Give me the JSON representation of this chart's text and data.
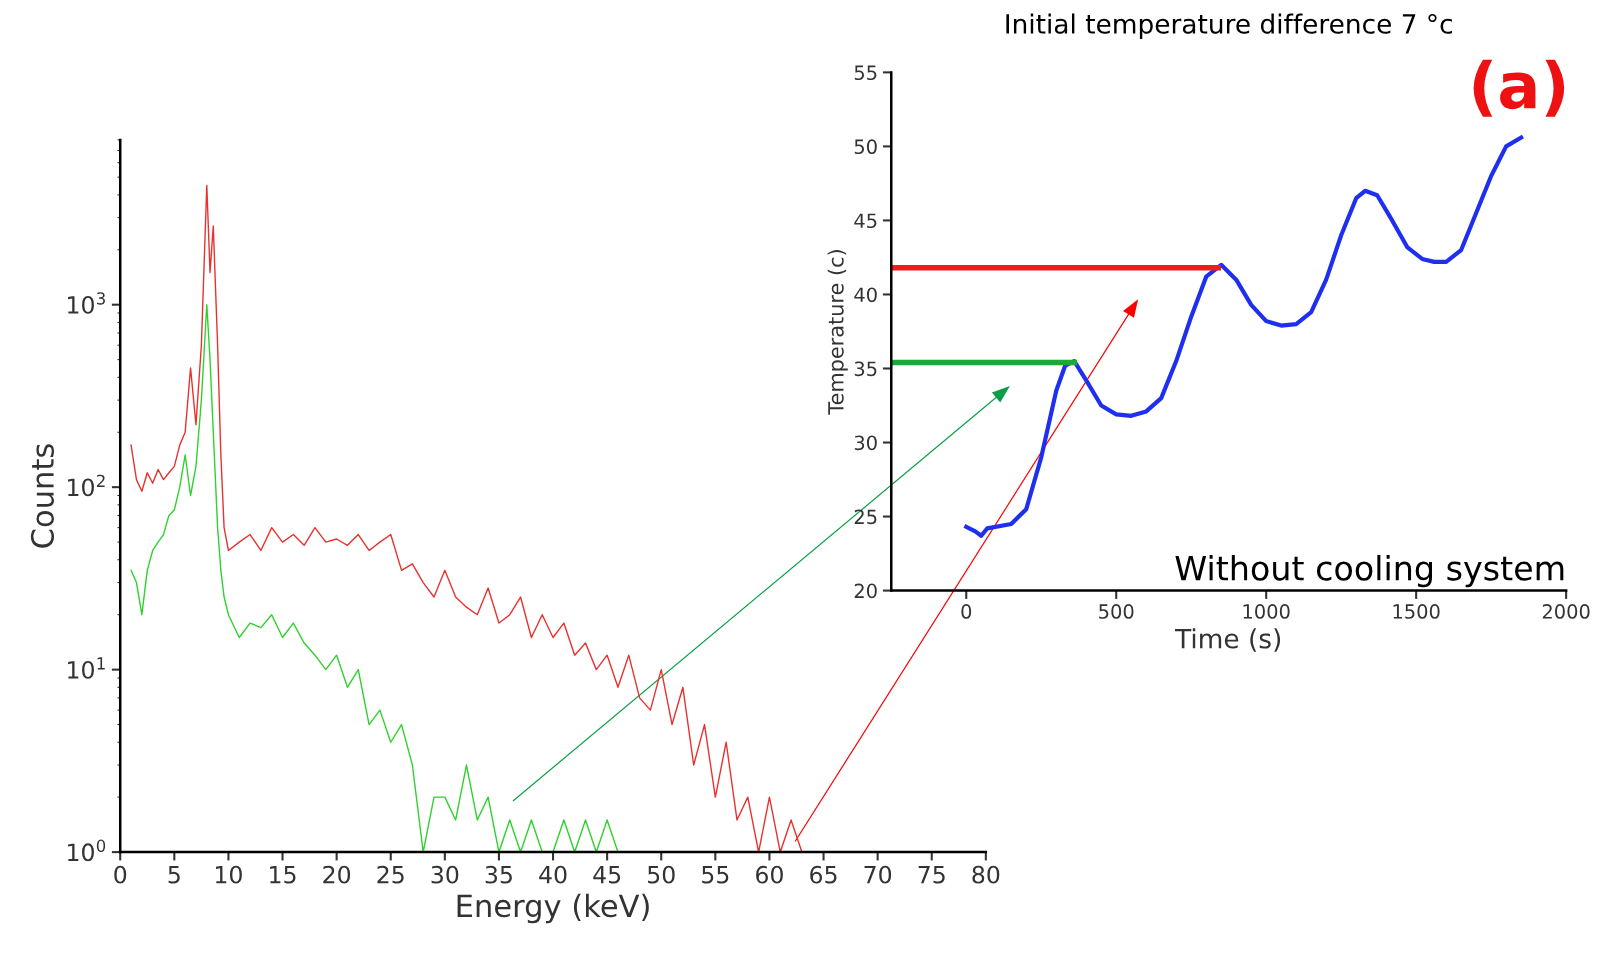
{
  "chart_data": [
    {
      "type": "line",
      "xlabel": "Energy (keV)",
      "ylabel": "Counts",
      "log": "y",
      "xlim": [
        0,
        80
      ],
      "xticks": [
        0,
        5,
        10,
        15,
        20,
        25,
        30,
        35,
        40,
        45,
        50,
        55,
        60,
        65,
        70,
        75,
        80
      ],
      "ylim": [
        1,
        8000
      ],
      "yticks": [
        {
          "value": 1,
          "label": "10$^{0}$"
        },
        {
          "value": 10,
          "label": "10$^{1}$"
        },
        {
          "value": 100,
          "label": "10$^{2}$"
        },
        {
          "value": 1000,
          "label": "10$^{3}$"
        }
      ],
      "x": [
        1,
        1.5,
        2,
        2.5,
        3,
        3.5,
        4,
        4.5,
        5,
        5.5,
        6,
        6.5,
        7,
        7.5,
        8,
        8.3,
        8.6,
        9,
        9.3,
        9.6,
        10,
        11,
        12,
        13,
        14,
        15,
        16,
        17,
        18,
        19,
        20,
        21,
        22,
        23,
        24,
        25,
        26,
        27,
        28,
        29,
        30,
        31,
        32,
        33,
        34,
        35,
        36,
        37,
        38,
        39,
        40,
        41,
        42,
        43,
        44,
        45,
        46,
        47,
        48,
        49,
        50,
        51,
        52,
        53,
        54,
        55,
        56,
        57,
        58,
        59,
        60,
        61,
        62,
        63
      ],
      "grid": false,
      "marker": "none",
      "line_style": "solid",
      "series": [
        {
          "color": "#e8312f",
          "values": [
            170,
            110,
            95,
            120,
            105,
            125,
            110,
            120,
            130,
            170,
            200,
            450,
            220,
            600,
            4500,
            1500,
            2700,
            600,
            150,
            60,
            45,
            50,
            55,
            45,
            60,
            50,
            55,
            48,
            60,
            50,
            52,
            48,
            55,
            45,
            50,
            55,
            35,
            38,
            30,
            25,
            35,
            25,
            22,
            20,
            28,
            18,
            20,
            25,
            15,
            20,
            15,
            18,
            12,
            14,
            10,
            12,
            8,
            12,
            7,
            6,
            10,
            5,
            8,
            3,
            5,
            2,
            4,
            1.5,
            2,
            1,
            2,
            1,
            1.5,
            1
          ]
        },
        {
          "color": "#2ed12e",
          "values": [
            35,
            30,
            20,
            35,
            45,
            50,
            55,
            70,
            75,
            100,
            150,
            90,
            130,
            300,
            1000,
            500,
            200,
            60,
            35,
            25,
            20,
            15,
            18,
            17,
            20,
            15,
            18,
            14,
            12,
            10,
            12,
            8,
            10,
            5,
            6,
            4,
            5,
            3,
            1,
            2,
            2,
            1.5,
            3,
            1.5,
            2,
            1,
            1.5,
            1,
            1.5,
            1,
            1,
            1.5,
            1,
            1.5,
            1,
            1.5,
            1,
            null,
            null,
            null,
            null,
            null,
            null,
            null,
            null,
            null,
            null,
            null,
            null,
            null,
            null,
            null,
            null,
            null
          ]
        }
      ]
    },
    {
      "type": "line",
      "title": "Initial temperature difference 7 °c",
      "xlabel": "Time (s)",
      "ylabel": "Temperature (c)",
      "xlim": [
        -250,
        2000
      ],
      "xticks": [
        0,
        500,
        1000,
        1500,
        2000
      ],
      "ylim": [
        20,
        55
      ],
      "yticks": [
        20,
        25,
        30,
        35,
        40,
        45,
        50,
        55
      ],
      "grid": false,
      "marker": "none",
      "line_style": "solid",
      "annotations": [
        "(a)",
        "Without cooling system"
      ],
      "series": [
        {
          "color": "#1f2ff0",
          "x": [
            0,
            30,
            50,
            70,
            150,
            200,
            250,
            300,
            330,
            360,
            400,
            450,
            500,
            550,
            600,
            650,
            700,
            750,
            800,
            850,
            900,
            950,
            1000,
            1050,
            1100,
            1150,
            1200,
            1250,
            1300,
            1330,
            1370,
            1420,
            1470,
            1520,
            1560,
            1600,
            1650,
            1700,
            1750,
            1800,
            1850
          ],
          "values": [
            24.3,
            24.0,
            23.7,
            24.2,
            24.5,
            25.5,
            29,
            33.5,
            35.2,
            35.5,
            34.2,
            32.5,
            31.9,
            31.8,
            32.1,
            33,
            35.5,
            38.5,
            41.2,
            42,
            41,
            39.3,
            38.2,
            37.9,
            38,
            38.8,
            41,
            44,
            46.5,
            47,
            46.7,
            45,
            43.2,
            42.4,
            42.2,
            42.2,
            43,
            45.5,
            48,
            50,
            50.6
          ]
        },
        {
          "color": "#ee1c1c",
          "x": [
            -250,
            840
          ],
          "values": [
            41.8,
            41.8
          ]
        },
        {
          "color": "#1fa83a",
          "x": [
            -250,
            360
          ],
          "values": [
            35.4,
            35.4
          ]
        }
      ]
    }
  ]
}
